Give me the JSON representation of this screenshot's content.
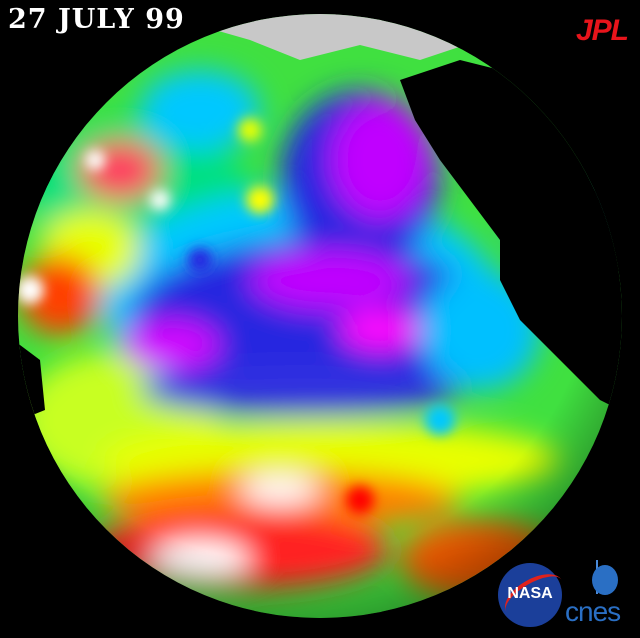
{
  "title": {
    "date": "27 JULY 99"
  },
  "logos": {
    "jpl": "JPL",
    "nasa": "NASA",
    "cnes": "cnes"
  },
  "colors": {
    "background": "#000000",
    "jpl_red": "#e8141b",
    "land_dark": "#000000",
    "land_ice": "#c8c8c8"
  },
  "map": {
    "subject": "Pacific Ocean sea surface height anomaly globe",
    "palette": [
      "#ff00ff",
      "#2020e0",
      "#00c8ff",
      "#00e060",
      "#e8ff00",
      "#ff8000",
      "#ff0000",
      "#ffffff"
    ]
  }
}
